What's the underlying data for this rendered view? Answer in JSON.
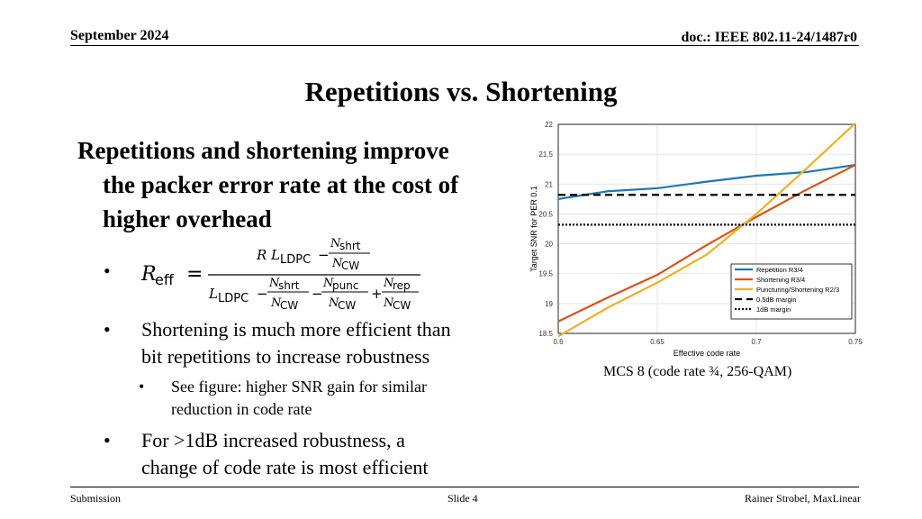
{
  "header": {
    "date": "September 2024",
    "doc": "doc.: IEEE 802.11-24/1487r0"
  },
  "title": "Repetitions vs. Shortening",
  "main": {
    "lead_line1": "Repetitions and shortening improve",
    "lead_line2": "the packer error rate at the cost of",
    "lead_line3": "higher overhead",
    "formula": {
      "lhs_symbol": "R",
      "lhs_sub": "eff",
      "num_R": "R",
      "num_L": "L",
      "num_L_sub": "LDPC",
      "N": "N",
      "shrt": "shrt",
      "punc": "punc",
      "rep": "rep",
      "cw": "CW",
      "den_L_sub": "LDPC"
    },
    "bullet2_line1": "Shortening is much more efficient than",
    "bullet2_line2": "bit repetitions to increase robustness",
    "sub1_line1": "See figure: higher SNR gain for similar",
    "sub1_line2": "reduction in code rate",
    "bullet3_line1": "For >1dB increased robustness, a",
    "bullet3_line2": "change of code rate is most efficient"
  },
  "caption": "MCS 8 (code rate ¾, 256-QAM)",
  "footer": {
    "left": "Submission",
    "center": "Slide 4",
    "right": "Rainer Strobel, MaxLinear"
  },
  "chart_data": {
    "type": "line",
    "xlabel": "Effective code rate",
    "ylabel": "Target SNR for PER 0.1",
    "xlim": [
      0.6,
      0.75
    ],
    "ylim": [
      18.5,
      22
    ],
    "xticks": [
      "0.6",
      "0.65",
      "0.7",
      "0.75"
    ],
    "yticks": [
      "18.5",
      "19",
      "19.5",
      "20",
      "20.5",
      "21",
      "21.5",
      "22"
    ],
    "grid": true,
    "legend_position": "bottom-right",
    "series": [
      {
        "name": "Repetition R3/4",
        "color": "#1f77b4",
        "style": "solid",
        "x": [
          0.6,
          0.625,
          0.65,
          0.675,
          0.7,
          0.725,
          0.75
        ],
        "y": [
          20.75,
          20.88,
          20.93,
          21.04,
          21.14,
          21.2,
          21.32
        ]
      },
      {
        "name": "Shortening R3/4",
        "color": "#d95319",
        "style": "solid",
        "x": [
          0.6,
          0.625,
          0.65,
          0.675,
          0.7,
          0.725,
          0.75
        ],
        "y": [
          18.7,
          19.1,
          19.48,
          19.98,
          20.45,
          20.9,
          21.32
        ]
      },
      {
        "name": "Puncturing/Shortening R2/3",
        "color": "#edb120",
        "style": "solid",
        "x": [
          0.6,
          0.625,
          0.65,
          0.675,
          0.7,
          0.725,
          0.75
        ],
        "y": [
          18.45,
          18.93,
          19.35,
          19.82,
          20.5,
          21.25,
          22.02
        ]
      },
      {
        "name": "0.5dB margin",
        "color": "#000000",
        "style": "dashed",
        "x": [
          0.6,
          0.75
        ],
        "y": [
          20.82,
          20.82
        ]
      },
      {
        "name": "1dB margin",
        "color": "#000000",
        "style": "dotted",
        "x": [
          0.6,
          0.75
        ],
        "y": [
          20.32,
          20.32
        ]
      }
    ]
  }
}
